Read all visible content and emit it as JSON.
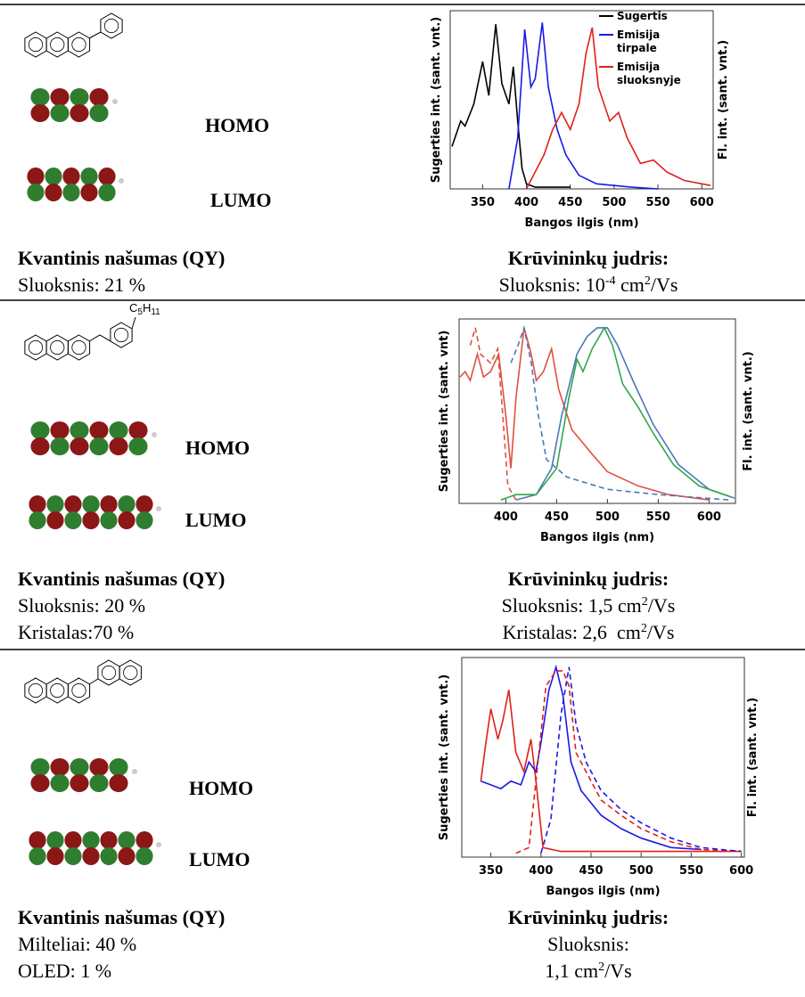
{
  "rows": [
    {
      "homo": "HOMO",
      "lumo": "LUMO",
      "qy": {
        "title": "Kvantinis našumas (QY)",
        "lines": [
          "Sluoksnis: 21 %"
        ]
      },
      "mobility": {
        "title": "Krūvininkų judris:",
        "lines": [
          [
            "Sluoksnis: 10",
            "-4",
            " cm",
            "2",
            "/Vs"
          ]
        ]
      }
    },
    {
      "homo": "HOMO",
      "lumo": "LUMO",
      "substituent": [
        "C",
        "5",
        "H",
        "11"
      ],
      "qy": {
        "title": "Kvantinis našumas (QY)",
        "lines": [
          "Sluoksnis: 20 %",
          "Kristalas:70 %"
        ]
      },
      "mobility": {
        "title": "Krūvininkų judris:",
        "lines": [
          [
            "Sluoksnis: 1,5 cm",
            "2",
            "/Vs"
          ],
          [
            "Kristalas: 2,6  cm",
            "2",
            "/Vs"
          ]
        ]
      }
    },
    {
      "homo": "HOMO",
      "lumo": "LUMO",
      "qy": {
        "title": "Kvantinis našumas (QY)",
        "lines": [
          "Milteliai: 40 %",
          "OLED: 1 %"
        ]
      },
      "mobility": {
        "title": "Krūvininkų judris:",
        "lines": [
          [
            "Sluoksnis:"
          ],
          [
            "1,1 cm",
            "2",
            "/Vs"
          ]
        ]
      }
    }
  ],
  "chart_data": [
    {
      "type": "line",
      "x_label": "Bangos ilgis (nm)",
      "y_label": "Sugerties int. (sant. vnt.)",
      "y2_label": "Fl. int. (sant. vnt.)",
      "xlim": [
        313,
        613
      ],
      "xticks": [
        350,
        400,
        450,
        500,
        550,
        600
      ],
      "ylim": [
        0,
        1.05
      ],
      "legend": "upper right",
      "series": [
        {
          "name": "Sugertis",
          "color": "#000000",
          "dashed": false,
          "x": [
            315,
            325,
            330,
            340,
            350,
            357,
            365,
            372,
            380,
            385,
            390,
            395,
            400,
            410,
            450
          ],
          "values": [
            0.25,
            0.4,
            0.37,
            0.5,
            0.75,
            0.55,
            0.97,
            0.62,
            0.5,
            0.72,
            0.4,
            0.12,
            0.03,
            0.01,
            0.01
          ]
        },
        {
          "name": "Emisija tirpale",
          "color": "#1a1ae6",
          "dashed": false,
          "x": [
            380,
            390,
            398,
            405,
            410,
            418,
            425,
            435,
            445,
            460,
            480,
            520,
            550
          ],
          "values": [
            0,
            0.3,
            0.94,
            0.6,
            0.65,
            0.98,
            0.6,
            0.35,
            0.2,
            0.08,
            0.03,
            0.01,
            0
          ]
        },
        {
          "name": "Emisija sluoksnyje",
          "color": "#e0201a",
          "dashed": false,
          "x": [
            400,
            420,
            430,
            440,
            450,
            460,
            468,
            475,
            482,
            495,
            505,
            515,
            530,
            545,
            560,
            580,
            610
          ],
          "values": [
            0,
            0.2,
            0.35,
            0.45,
            0.35,
            0.5,
            0.8,
            0.95,
            0.6,
            0.4,
            0.45,
            0.3,
            0.15,
            0.17,
            0.1,
            0.05,
            0.02
          ]
        }
      ]
    },
    {
      "type": "line",
      "x_label": "Bangos ilgis (nm)",
      "y_label": "Sugerties int. (sant. vnt)",
      "y2_label": "Fl. int. (sant. vnt.)",
      "xlim": [
        354,
        626
      ],
      "xticks": [
        400,
        450,
        500,
        550,
        600
      ],
      "ylim": [
        0,
        1.05
      ],
      "series": [
        {
          "color": "#e05040",
          "dashed": false,
          "x": [
            355,
            360,
            365,
            372,
            378,
            385,
            393,
            400,
            405,
            410,
            418,
            425,
            430,
            437,
            445,
            452,
            465,
            475,
            485,
            500,
            530,
            560,
            600
          ],
          "values": [
            0.72,
            0.75,
            0.7,
            0.85,
            0.72,
            0.75,
            0.85,
            0.5,
            0.2,
            0.6,
            1.0,
            0.85,
            0.7,
            0.75,
            0.88,
            0.65,
            0.42,
            0.35,
            0.28,
            0.18,
            0.1,
            0.05,
            0.02
          ]
        },
        {
          "color": "#e05040",
          "dashed": true,
          "x": [
            365,
            370,
            375,
            385,
            392,
            397,
            402,
            410
          ],
          "values": [
            0.9,
            1.0,
            0.85,
            0.8,
            0.88,
            0.5,
            0.1,
            0.02
          ]
        },
        {
          "color": "#4a78b8",
          "dashed": true,
          "x": [
            405,
            412,
            418,
            425,
            432,
            440,
            460,
            500,
            550,
            620
          ],
          "values": [
            0.8,
            0.9,
            1.0,
            0.8,
            0.5,
            0.25,
            0.15,
            0.08,
            0.05,
            0.02
          ]
        },
        {
          "color": "#4a78b8",
          "dashed": false,
          "x": [
            410,
            430,
            445,
            455,
            470,
            480,
            490,
            500,
            510,
            525,
            545,
            570,
            600,
            625
          ],
          "values": [
            0.02,
            0.05,
            0.2,
            0.5,
            0.85,
            0.95,
            1.0,
            1.0,
            0.9,
            0.7,
            0.45,
            0.22,
            0.08,
            0.03
          ]
        },
        {
          "color": "#2ea84a",
          "dashed": false,
          "x": [
            395,
            410,
            430,
            450,
            462,
            470,
            476,
            485,
            497,
            505,
            515,
            530,
            545,
            565,
            590,
            620
          ],
          "values": [
            0.02,
            0.05,
            0.05,
            0.2,
            0.6,
            0.82,
            0.75,
            0.88,
            1.0,
            0.9,
            0.68,
            0.55,
            0.4,
            0.22,
            0.1,
            0.04
          ]
        }
      ]
    },
    {
      "type": "line",
      "x_label": "Bangos ilgis (nm)",
      "y_label": "Sugerties int. (sant. vnt.)",
      "y2_label": "Fl. int. (sant. vnt.)",
      "xlim": [
        321,
        603
      ],
      "xticks": [
        350,
        400,
        450,
        500,
        550,
        600
      ],
      "ylim": [
        0,
        1.05
      ],
      "series": [
        {
          "color": "#e0201a",
          "dashed": false,
          "x": [
            340,
            345,
            350,
            357,
            362,
            368,
            375,
            383,
            390,
            395,
            402,
            420,
            550,
            600
          ],
          "values": [
            0.4,
            0.6,
            0.78,
            0.62,
            0.72,
            0.88,
            0.55,
            0.45,
            0.62,
            0.4,
            0.05,
            0.03,
            0.03,
            0.03
          ]
        },
        {
          "color": "#1a1ae6",
          "dashed": false,
          "x": [
            340,
            350,
            360,
            370,
            380,
            388,
            395,
            400,
            408,
            415,
            422,
            430,
            440,
            460,
            480,
            500,
            530,
            560
          ],
          "values": [
            0.4,
            0.38,
            0.36,
            0.4,
            0.38,
            0.5,
            0.45,
            0.6,
            0.88,
            1.0,
            0.85,
            0.5,
            0.35,
            0.22,
            0.15,
            0.1,
            0.05,
            0.04
          ]
        },
        {
          "color": "#e0201a",
          "dashed": true,
          "x": [
            375,
            388,
            395,
            405,
            415,
            422,
            428,
            435,
            445,
            460,
            480,
            500,
            530,
            560,
            600
          ],
          "values": [
            0.02,
            0.05,
            0.4,
            0.9,
            0.98,
            0.98,
            0.9,
            0.55,
            0.45,
            0.3,
            0.22,
            0.15,
            0.08,
            0.04,
            0.03
          ]
        },
        {
          "color": "#1a1ae6",
          "dashed": true,
          "x": [
            400,
            410,
            420,
            428,
            435,
            445,
            460,
            480,
            500,
            530,
            560,
            600
          ],
          "values": [
            0.02,
            0.2,
            0.75,
            1.0,
            0.7,
            0.5,
            0.35,
            0.25,
            0.18,
            0.1,
            0.05,
            0.03
          ]
        }
      ]
    }
  ]
}
